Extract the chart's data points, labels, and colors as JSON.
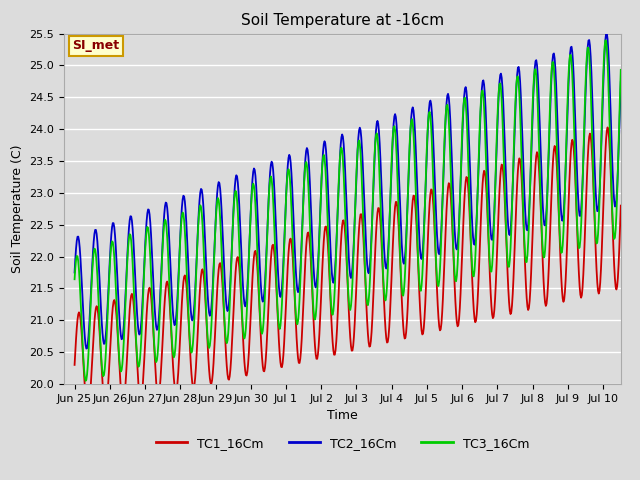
{
  "title": "Soil Temperature at -16cm",
  "xlabel": "Time",
  "ylabel": "Soil Temperature (C)",
  "ylim": [
    20.0,
    25.5
  ],
  "yticks": [
    20.0,
    20.5,
    21.0,
    21.5,
    22.0,
    22.5,
    23.0,
    23.5,
    24.0,
    24.5,
    25.0,
    25.5
  ],
  "bg_color": "#dcdcdc",
  "tc1_color": "#cc0000",
  "tc2_color": "#0000cc",
  "tc3_color": "#00cc00",
  "legend_label_1": "TC1_16Cm",
  "legend_label_2": "TC2_16Cm",
  "legend_label_3": "TC3_16Cm",
  "annotation_text": "SI_met",
  "annotation_bg": "#ffffcc",
  "annotation_border": "#cc9900",
  "title_fontsize": 11,
  "axis_fontsize": 9,
  "tick_fontsize": 8,
  "legend_fontsize": 9,
  "line_width": 1.3,
  "xtick_labels": [
    "Jun 25",
    "Jun 26",
    "Jun 27",
    "Jun 28",
    "Jun 29",
    "Jun 30",
    "Jul 1",
    "Jul 2",
    "Jul 3",
    "Jul 4",
    "Jul 5",
    "Jul 6",
    "Jul 7",
    "Jul 8",
    "Jul 9",
    "Jul 10"
  ],
  "n_days": 15.5,
  "n_points": 744
}
